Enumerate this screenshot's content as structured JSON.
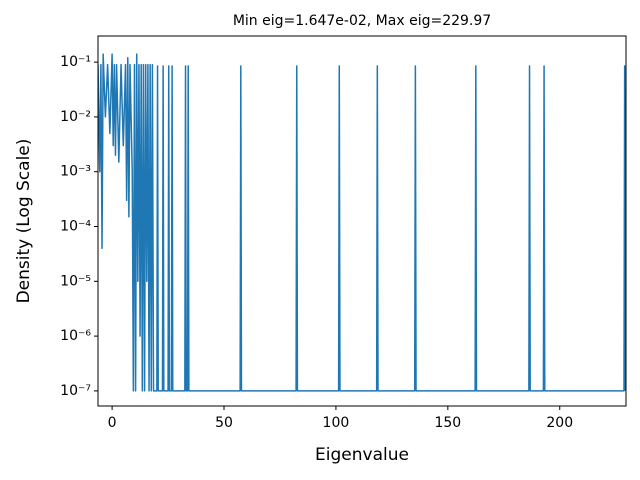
{
  "chart_data": {
    "type": "line",
    "title": "Min eig=1.647e-02, Max eig=229.97",
    "xlabel": "Eigenvalue",
    "ylabel": "Density (Log Scale)",
    "color": "#1f77b4",
    "yscale": "log",
    "xlim": [
      -6.3,
      229.6
    ],
    "ylim": [
      5.3e-08,
      0.3
    ],
    "xticks": [
      0,
      50,
      100,
      150,
      200
    ],
    "yticks": [
      {
        "value": 1e-07,
        "label": "10⁻⁷"
      },
      {
        "value": 1e-06,
        "label": "10⁻⁶"
      },
      {
        "value": 1e-05,
        "label": "10⁻⁵"
      },
      {
        "value": 0.0001,
        "label": "10⁻⁴"
      },
      {
        "value": 0.001,
        "label": "10⁻³"
      },
      {
        "value": 0.01,
        "label": "10⁻²"
      },
      {
        "value": 0.1,
        "label": "10⁻¹"
      }
    ],
    "x": [
      -6.3,
      -5.5,
      -5,
      -4.5,
      -4,
      -3,
      -2,
      -1,
      0,
      0.5,
      1,
      1.5,
      2,
      3,
      4,
      5,
      6,
      6.5,
      7,
      7.5,
      8,
      9,
      9.5,
      10,
      10.5,
      11,
      11.5,
      12,
      12.5,
      13,
      13.5,
      14,
      14.5,
      15,
      15.5,
      16,
      16.5,
      17,
      17.5,
      18,
      18.5,
      20,
      20.3,
      20.6,
      22.5,
      22.8,
      23.1,
      25,
      25.3,
      25.6,
      26.5,
      26.8,
      27.1,
      32.5,
      32.8,
      33.1,
      33.7,
      34,
      34.3,
      57.2,
      57.5,
      57.8,
      82.2,
      82.5,
      82.8,
      101.2,
      101.5,
      101.8,
      118.2,
      118.5,
      118.8,
      135.2,
      135.5,
      135.8,
      162.2,
      162.5,
      162.8,
      186.2,
      186.5,
      186.8,
      192.7,
      193,
      193.3,
      228.7,
      229,
      229.3
    ],
    "values": [
      0.09,
      0.001,
      0.09,
      4e-05,
      0.14,
      0.01,
      0.09,
      0.005,
      0.14,
      0.003,
      0.09,
      0.002,
      0.09,
      0.0015,
      0.09,
      0.003,
      0.09,
      0.0003,
      0.12,
      0.00015,
      0.09,
      0.001,
      1e-07,
      0.09,
      1e-07,
      0.14,
      1e-05,
      0.09,
      1e-06,
      0.09,
      1e-07,
      0.09,
      1e-07,
      0.09,
      1e-05,
      0.09,
      1e-07,
      0.09,
      1e-07,
      0.09,
      1e-07,
      1e-07,
      0.085,
      1e-07,
      1e-07,
      0.085,
      1e-07,
      1e-07,
      0.085,
      1e-07,
      1e-07,
      0.085,
      1e-07,
      1e-07,
      0.085,
      1e-07,
      1e-07,
      0.085,
      1e-07,
      1e-07,
      0.085,
      1e-07,
      1e-07,
      0.085,
      1e-07,
      1e-07,
      0.085,
      1e-07,
      1e-07,
      0.085,
      1e-07,
      1e-07,
      0.085,
      1e-07,
      1e-07,
      0.085,
      1e-07,
      1e-07,
      0.085,
      1e-07,
      1e-07,
      0.085,
      1e-07,
      1e-07,
      0.085,
      1e-07
    ]
  }
}
